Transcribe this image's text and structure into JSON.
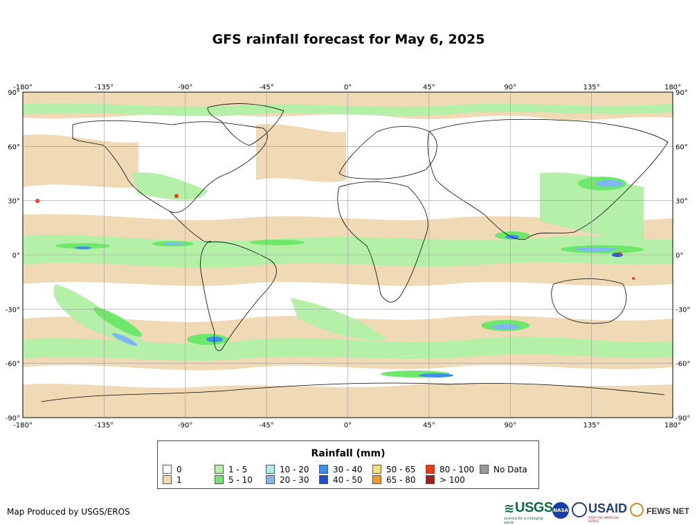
{
  "title": "GFS rainfall forecast for May 6, 2025",
  "map": {
    "lon_ticks": [
      "-180°",
      "-135°",
      "-90°",
      "-45°",
      "0°",
      "45°",
      "90°",
      "135°",
      "180°"
    ],
    "lat_ticks": [
      "90°",
      "60°",
      "30°",
      "0°",
      "-30°",
      "-60°",
      "-90°"
    ],
    "ocean_color": "#ffffff",
    "grid_color": "#999999",
    "coastline_color": "#000000"
  },
  "legend": {
    "title": "Rainfall (mm)",
    "items": [
      {
        "label": "0",
        "color": "#ffffff"
      },
      {
        "label": "1",
        "color": "#f0d9b5"
      },
      {
        "label": "1 - 5",
        "color": "#b5f0a8"
      },
      {
        "label": "5 - 10",
        "color": "#6ee86a"
      },
      {
        "label": "10 - 20",
        "color": "#aaeeee"
      },
      {
        "label": "20 - 30",
        "color": "#7db8f5"
      },
      {
        "label": "30 - 40",
        "color": "#3c8ef0"
      },
      {
        "label": "40 - 50",
        "color": "#1c4fd6"
      },
      {
        "label": "50 - 65",
        "color": "#f5e07a"
      },
      {
        "label": "65 - 80",
        "color": "#f59a1c"
      },
      {
        "label": "80 - 100",
        "color": "#f03c14"
      },
      {
        "label": "> 100",
        "color": "#a01e1e"
      },
      {
        "label": "No Data",
        "color": "#999999"
      }
    ]
  },
  "credit": "Map Produced by USGS/EROS",
  "logos": {
    "usgs": "USGS",
    "usgs_tagline": "science for a changing world",
    "nasa": "NASA",
    "usaid": "USAID",
    "usaid_tagline": "FROM THE AMERICAN PEOPLE",
    "fews": "FEWS NET"
  }
}
